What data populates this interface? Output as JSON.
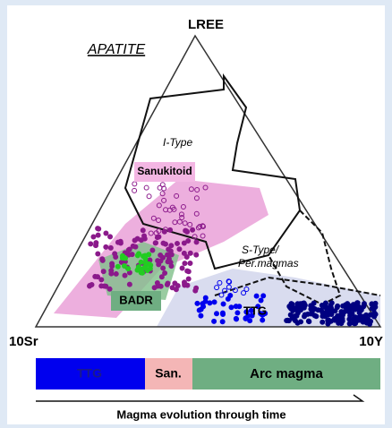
{
  "title": "APATITE",
  "vertices": {
    "top": "LREE",
    "left": "10Sr",
    "right": "10Y"
  },
  "fields": {
    "i_type": "I-Type",
    "sanukitoid": "Sanukitoid",
    "s_type_line1": "S-Type/",
    "s_type_line2": "Per.magmas",
    "badr": "BADR",
    "ttg": "TTG"
  },
  "bar": {
    "segments": [
      "TTG",
      "San.",
      "Arc magma"
    ]
  },
  "arrow_label": "Magma evolution through time"
}
